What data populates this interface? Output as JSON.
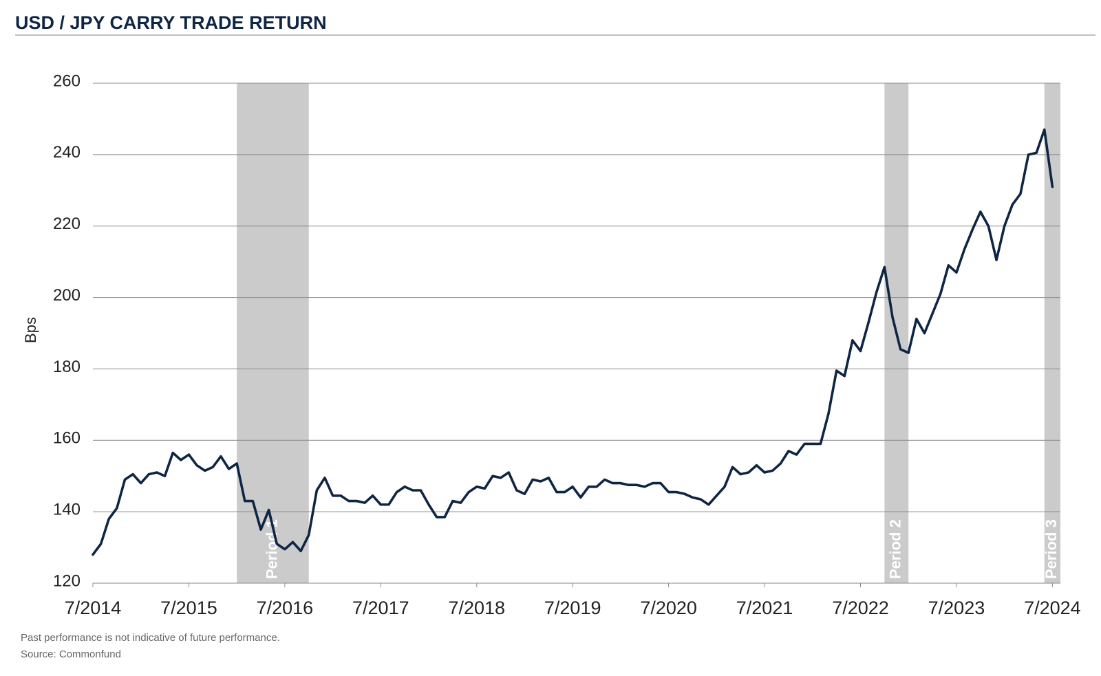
{
  "chart_data": {
    "type": "line",
    "title": "USD / JPY CARRY TRADE RETURN",
    "y_label": "Bps",
    "footnotes": [
      "Past performance is not indicative of future performance.",
      "Source: Commonfund"
    ],
    "color": "#0f2544",
    "grid": true,
    "ylim": [
      120,
      260
    ],
    "yticks": [
      120,
      140,
      160,
      180,
      200,
      220,
      240,
      260
    ],
    "xlim": [
      "2014-07",
      "2024-08"
    ],
    "xticks": [
      {
        "value": "2014-07",
        "label": "7/2014"
      },
      {
        "value": "2015-07",
        "label": "7/2015"
      },
      {
        "value": "2016-07",
        "label": "7/2016"
      },
      {
        "value": "2017-07",
        "label": "7/2017"
      },
      {
        "value": "2018-07",
        "label": "7/2018"
      },
      {
        "value": "2019-07",
        "label": "7/2019"
      },
      {
        "value": "2020-07",
        "label": "7/2020"
      },
      {
        "value": "2021-07",
        "label": "7/2021"
      },
      {
        "value": "2022-07",
        "label": "7/2022"
      },
      {
        "value": "2023-07",
        "label": "7/2023"
      },
      {
        "value": "2024-07",
        "label": "7/2024"
      }
    ],
    "shaded_periods": [
      {
        "label": "Period 1",
        "start": "2016-01",
        "end": "2016-10"
      },
      {
        "label": "Period 2",
        "start": "2022-10",
        "end": "2023-01"
      },
      {
        "label": "Period 3",
        "start": "2024-06",
        "end": "2024-08"
      }
    ],
    "x": [
      "2014-07",
      "2014-08",
      "2014-09",
      "2014-10",
      "2014-11",
      "2014-12",
      "2015-01",
      "2015-02",
      "2015-03",
      "2015-04",
      "2015-05",
      "2015-06",
      "2015-07",
      "2015-08",
      "2015-09",
      "2015-10",
      "2015-11",
      "2015-12",
      "2016-01",
      "2016-02",
      "2016-03",
      "2016-04",
      "2016-05",
      "2016-06",
      "2016-07",
      "2016-08",
      "2016-09",
      "2016-10",
      "2016-11",
      "2016-12",
      "2017-01",
      "2017-02",
      "2017-03",
      "2017-04",
      "2017-05",
      "2017-06",
      "2017-07",
      "2017-08",
      "2017-09",
      "2017-10",
      "2017-11",
      "2017-12",
      "2018-01",
      "2018-02",
      "2018-03",
      "2018-04",
      "2018-05",
      "2018-06",
      "2018-07",
      "2018-08",
      "2018-09",
      "2018-10",
      "2018-11",
      "2018-12",
      "2019-01",
      "2019-02",
      "2019-03",
      "2019-04",
      "2019-05",
      "2019-06",
      "2019-07",
      "2019-08",
      "2019-09",
      "2019-10",
      "2019-11",
      "2019-12",
      "2020-01",
      "2020-02",
      "2020-03",
      "2020-04",
      "2020-05",
      "2020-06",
      "2020-07",
      "2020-08",
      "2020-09",
      "2020-10",
      "2020-11",
      "2020-12",
      "2021-01",
      "2021-02",
      "2021-03",
      "2021-04",
      "2021-05",
      "2021-06",
      "2021-07",
      "2021-08",
      "2021-09",
      "2021-10",
      "2021-11",
      "2021-12",
      "2022-01",
      "2022-02",
      "2022-03",
      "2022-04",
      "2022-05",
      "2022-06",
      "2022-07",
      "2022-08",
      "2022-09",
      "2022-10",
      "2022-11",
      "2022-12",
      "2023-01",
      "2023-02",
      "2023-03",
      "2023-04",
      "2023-05",
      "2023-06",
      "2023-07",
      "2023-08",
      "2023-09",
      "2023-10",
      "2023-11",
      "2023-12",
      "2024-01",
      "2024-02",
      "2024-03",
      "2024-04",
      "2024-05",
      "2024-06",
      "2024-07"
    ],
    "values": [
      128,
      131,
      138,
      141,
      149,
      150.5,
      148,
      150.5,
      151,
      150,
      156.5,
      154.5,
      156,
      153,
      151.5,
      152.5,
      155.5,
      152,
      153.5,
      143,
      143,
      135,
      140.5,
      131,
      129.5,
      131.5,
      129,
      133.5,
      146,
      149.5,
      144.5,
      144.5,
      143,
      143,
      142.5,
      144.5,
      142,
      142,
      145.5,
      147,
      146,
      146,
      142,
      138.5,
      138.5,
      143,
      142.5,
      145.5,
      147,
      146.5,
      150,
      149.5,
      151,
      146,
      145,
      149,
      148.5,
      149.5,
      145.5,
      145.5,
      147,
      144,
      147,
      147,
      149,
      148,
      148,
      147.5,
      147.5,
      147,
      148,
      148,
      145.5,
      145.5,
      145,
      144,
      143.5,
      142,
      144.5,
      147,
      152.5,
      150.5,
      151,
      153,
      151,
      151.5,
      153.5,
      157,
      156,
      159,
      159,
      159,
      167.5,
      179.5,
      178,
      188,
      185,
      193,
      201.5,
      208.5,
      194.5,
      185.5,
      184.5,
      194,
      190,
      195.5,
      201,
      209,
      207,
      213.5,
      219,
      224,
      220,
      210.5,
      220,
      226,
      229,
      240,
      240.5,
      247,
      231
    ]
  }
}
